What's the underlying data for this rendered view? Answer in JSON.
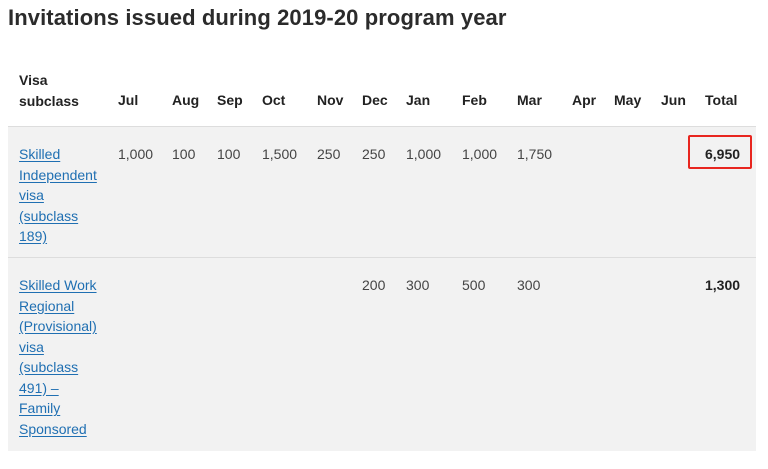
{
  "page_title": "Invitations issued during 2019-20 program year",
  "table": {
    "headers": {
      "visa_line1": "Visa",
      "visa_line2": "subclass",
      "months": [
        "Jul",
        "Aug",
        "Sep",
        "Oct",
        "Nov",
        "Dec",
        "Jan",
        "Feb",
        "Mar",
        "Apr",
        "May",
        "Jun"
      ],
      "total": "Total"
    },
    "rows": [
      {
        "visa_lines": [
          "Skilled",
          "Independent",
          "visa",
          "(subclass",
          "189)"
        ],
        "values": [
          "1,000",
          "100",
          "100",
          "1,500",
          "250",
          "250",
          "1,000",
          "1,000",
          "1,750",
          "",
          "",
          ""
        ],
        "total": "6,950",
        "total_highlighted": true
      },
      {
        "visa_lines": [
          "Skilled Work",
          "Regional",
          "(Provisional)",
          "visa",
          "(subclass",
          "491) –",
          "Family",
          "Sponsored"
        ],
        "values": [
          "",
          "",
          "",
          "",
          "",
          "200",
          "300",
          "500",
          "300",
          "",
          "",
          ""
        ],
        "total": "1,300",
        "total_highlighted": false
      }
    ]
  },
  "colors": {
    "link": "#1f6fb2",
    "highlight": "#e8261f",
    "row_bg": "#f2f2f2"
  }
}
